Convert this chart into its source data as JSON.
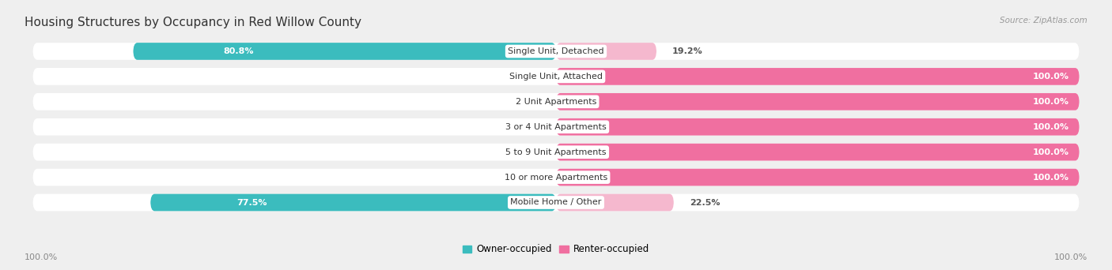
{
  "title": "Housing Structures by Occupancy in Red Willow County",
  "source": "Source: ZipAtlas.com",
  "categories": [
    "Single Unit, Detached",
    "Single Unit, Attached",
    "2 Unit Apartments",
    "3 or 4 Unit Apartments",
    "5 to 9 Unit Apartments",
    "10 or more Apartments",
    "Mobile Home / Other"
  ],
  "owner_pct": [
    80.8,
    0.0,
    0.0,
    0.0,
    0.0,
    0.0,
    77.5
  ],
  "renter_pct": [
    19.2,
    100.0,
    100.0,
    100.0,
    100.0,
    100.0,
    22.5
  ],
  "owner_color": "#3BBCBE",
  "renter_color_full": "#F06FA0",
  "renter_color_light": "#F5B8CE",
  "owner_label": "Owner-occupied",
  "renter_label": "Renter-occupied",
  "bg_color": "#EFEFEF",
  "bar_white": "#FFFFFF",
  "title_fontsize": 11,
  "label_fontsize": 8,
  "bar_height": 0.68,
  "axis_label_left": "100.0%",
  "axis_label_right": "100.0%"
}
